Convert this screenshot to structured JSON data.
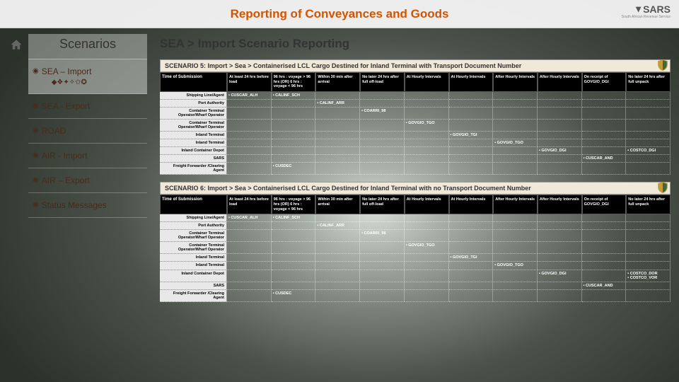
{
  "header": {
    "title": "Reporting of Conveyances and Goods",
    "brand": "SARS",
    "brand_sub": "South African Revenue Service"
  },
  "sidebar": {
    "title": "Scenarios",
    "items": [
      {
        "label": "SEA – Import",
        "sub": "◆❖✦✧✩✪"
      },
      {
        "label": "SEA - Export"
      },
      {
        "label": "ROAD"
      },
      {
        "label": "AIR - Import"
      },
      {
        "label": "AIR – Export"
      },
      {
        "label": "Status Messages"
      }
    ]
  },
  "main_title": "SEA > Import Scenario Reporting",
  "columns": [
    "Time of Submission",
    "At least 24 hrs before load",
    "96 hrs : voyage > 96 hrs (OR) 6 hrs : voyage < 96 hrs",
    "Within 30 min after arrival",
    "No later 24 hrs after full off-load",
    "At Hourly Intervals",
    "At Hourly Intervals",
    "After Hourly Intervals",
    "After Hourly Intervals",
    "On receipt of GOVGIO_DGI",
    "No later 24 hrs after full unpack"
  ],
  "row_labels": [
    "Shipping Line/Agent",
    "Port Authority",
    "Container Terminal Operator/Wharf Operator",
    "Container Terminal Operator/Wharf Operator",
    "Inland Terminal",
    "Inland Terminal",
    "Inland Container Depot",
    "SARS",
    "Freight Forwarder /Clearing Agent"
  ],
  "scenario5": {
    "title": "SCENARIO 5: Import > Sea > Containerised LCL Cargo Destined for Inland Terminal with Transport Document Number",
    "cells": [
      [
        "• CUSCAR_ALH",
        "• CALINF_SCH",
        "",
        "",
        "",
        "",
        "",
        "",
        "",
        ""
      ],
      [
        "",
        "",
        "• CALINF_ARR",
        "",
        "",
        "",
        "",
        "",
        "",
        ""
      ],
      [
        "",
        "",
        "",
        "• COARRI_98",
        "",
        "",
        "",
        "",
        "",
        ""
      ],
      [
        "",
        "",
        "",
        "",
        "• GOVGIO_TGO",
        "",
        "",
        "",
        "",
        ""
      ],
      [
        "",
        "",
        "",
        "",
        "",
        "• GOVGIO_TGI",
        "",
        "",
        "",
        ""
      ],
      [
        "",
        "",
        "",
        "",
        "",
        "",
        "• GOVGIO_TGO",
        "",
        "",
        ""
      ],
      [
        "",
        "",
        "",
        "",
        "",
        "",
        "",
        "• GOVGIO_DGI",
        "",
        "• COSTCO_DGI"
      ],
      [
        "",
        "",
        "",
        "",
        "",
        "",
        "",
        "",
        "• CUSCAR_AND",
        ""
      ],
      [
        "",
        "• CUSDEC",
        "",
        "",
        "",
        "",
        "",
        "",
        "",
        ""
      ]
    ]
  },
  "scenario6": {
    "title": "SCENARIO 6: Import > Sea > Containerised LCL Cargo Destined for Inland Terminal with no Transport Document Number",
    "cells": [
      [
        "• CUSCAR_ALH",
        "• CALINF_SCH",
        "",
        "",
        "",
        "",
        "",
        "",
        "",
        ""
      ],
      [
        "",
        "",
        "• CALINF_ARR",
        "",
        "",
        "",
        "",
        "",
        "",
        ""
      ],
      [
        "",
        "",
        "",
        "• COARRI_98",
        "",
        "",
        "",
        "",
        "",
        ""
      ],
      [
        "",
        "",
        "",
        "",
        "• GOVGIO_TGO",
        "",
        "",
        "",
        "",
        ""
      ],
      [
        "",
        "",
        "",
        "",
        "",
        "• GOVGIO_TGI",
        "",
        "",
        "",
        ""
      ],
      [
        "",
        "",
        "",
        "",
        "",
        "",
        "• GOVGIO_TGO",
        "",
        "",
        ""
      ],
      [
        "",
        "",
        "",
        "",
        "",
        "",
        "",
        "• GOVGIO_DGI",
        "",
        "• COSTCO_DOR\n• COSTCO_VOR"
      ],
      [
        "",
        "",
        "",
        "",
        "",
        "",
        "",
        "",
        "• CUSCAR_AND",
        ""
      ],
      [
        "",
        "• CUSDEC",
        "",
        "",
        "",
        "",
        "",
        "",
        "",
        ""
      ]
    ]
  }
}
